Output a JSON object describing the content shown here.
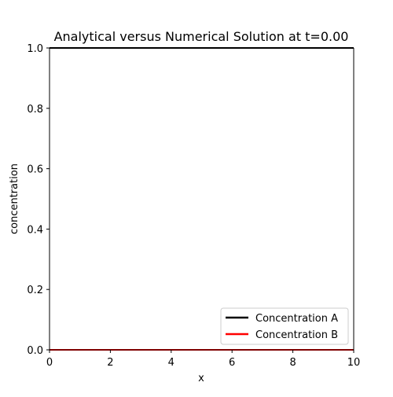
{
  "chart_data": {
    "type": "line",
    "title": "Analytical versus Numerical Solution at t=0.00",
    "xlabel": "x",
    "ylabel": "concentration",
    "xlim": [
      0,
      10
    ],
    "ylim": [
      0,
      1.0
    ],
    "x_ticks": [
      0,
      2,
      4,
      6,
      8,
      10
    ],
    "x_tick_labels": [
      "0",
      "2",
      "4",
      "6",
      "8",
      "10"
    ],
    "y_ticks": [
      0,
      0.2,
      0.4,
      0.6,
      0.8,
      1.0
    ],
    "y_tick_labels": [
      "0.0",
      "0.2",
      "0.4",
      "0.6",
      "0.8",
      "1.0"
    ],
    "grid": false,
    "legend_position": "lower-right",
    "series": [
      {
        "name": "Concentration A",
        "color": "#000000",
        "x": [
          0,
          10
        ],
        "y": [
          1.0,
          1.0
        ]
      },
      {
        "name": "Concentration B",
        "color": "#ff0000",
        "x": [
          0,
          10
        ],
        "y": [
          0.0,
          0.0
        ]
      }
    ]
  }
}
